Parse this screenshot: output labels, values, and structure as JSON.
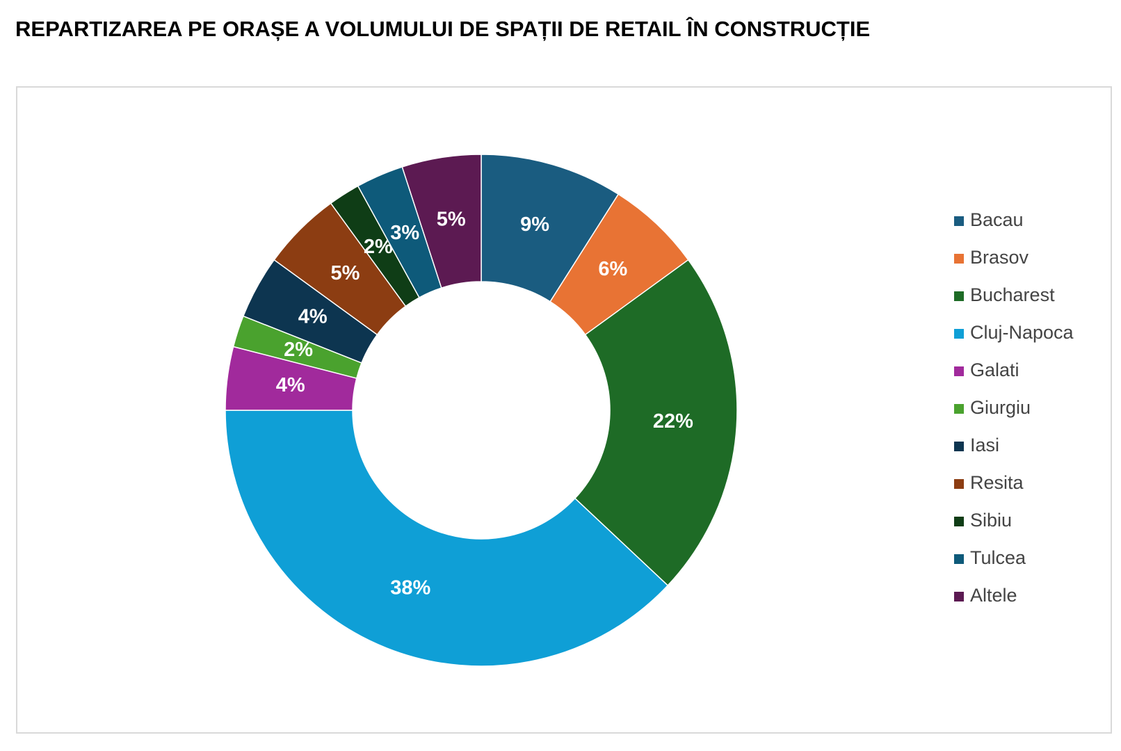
{
  "chart_data": {
    "type": "donut",
    "title": "REPARTIZAREA PE ORAȘE A VOLUMULUI DE SPAȚII DE RETAIL ÎN CONSTRUCȚIE",
    "categories": [
      "Bacau",
      "Brasov",
      "Bucharest",
      "Cluj-Napoca",
      "Galati",
      "Giurgiu",
      "Iasi",
      "Resita",
      "Sibiu",
      "Tulcea",
      "Altele"
    ],
    "values": [
      9,
      6,
      22,
      38,
      4,
      2,
      4,
      5,
      2,
      3,
      5
    ],
    "value_labels": [
      "9%",
      "6%",
      "22%",
      "38%",
      "4%",
      "2%",
      "4%",
      "5%",
      "2%",
      "3%",
      "5%"
    ],
    "colors": [
      "#1a5c80",
      "#e87334",
      "#1e6b26",
      "#0f9fd6",
      "#a12a9c",
      "#4aa22e",
      "#0d3550",
      "#8c3d12",
      "#0f3d16",
      "#0e5a7a",
      "#5c1a52"
    ],
    "legend": "right"
  }
}
